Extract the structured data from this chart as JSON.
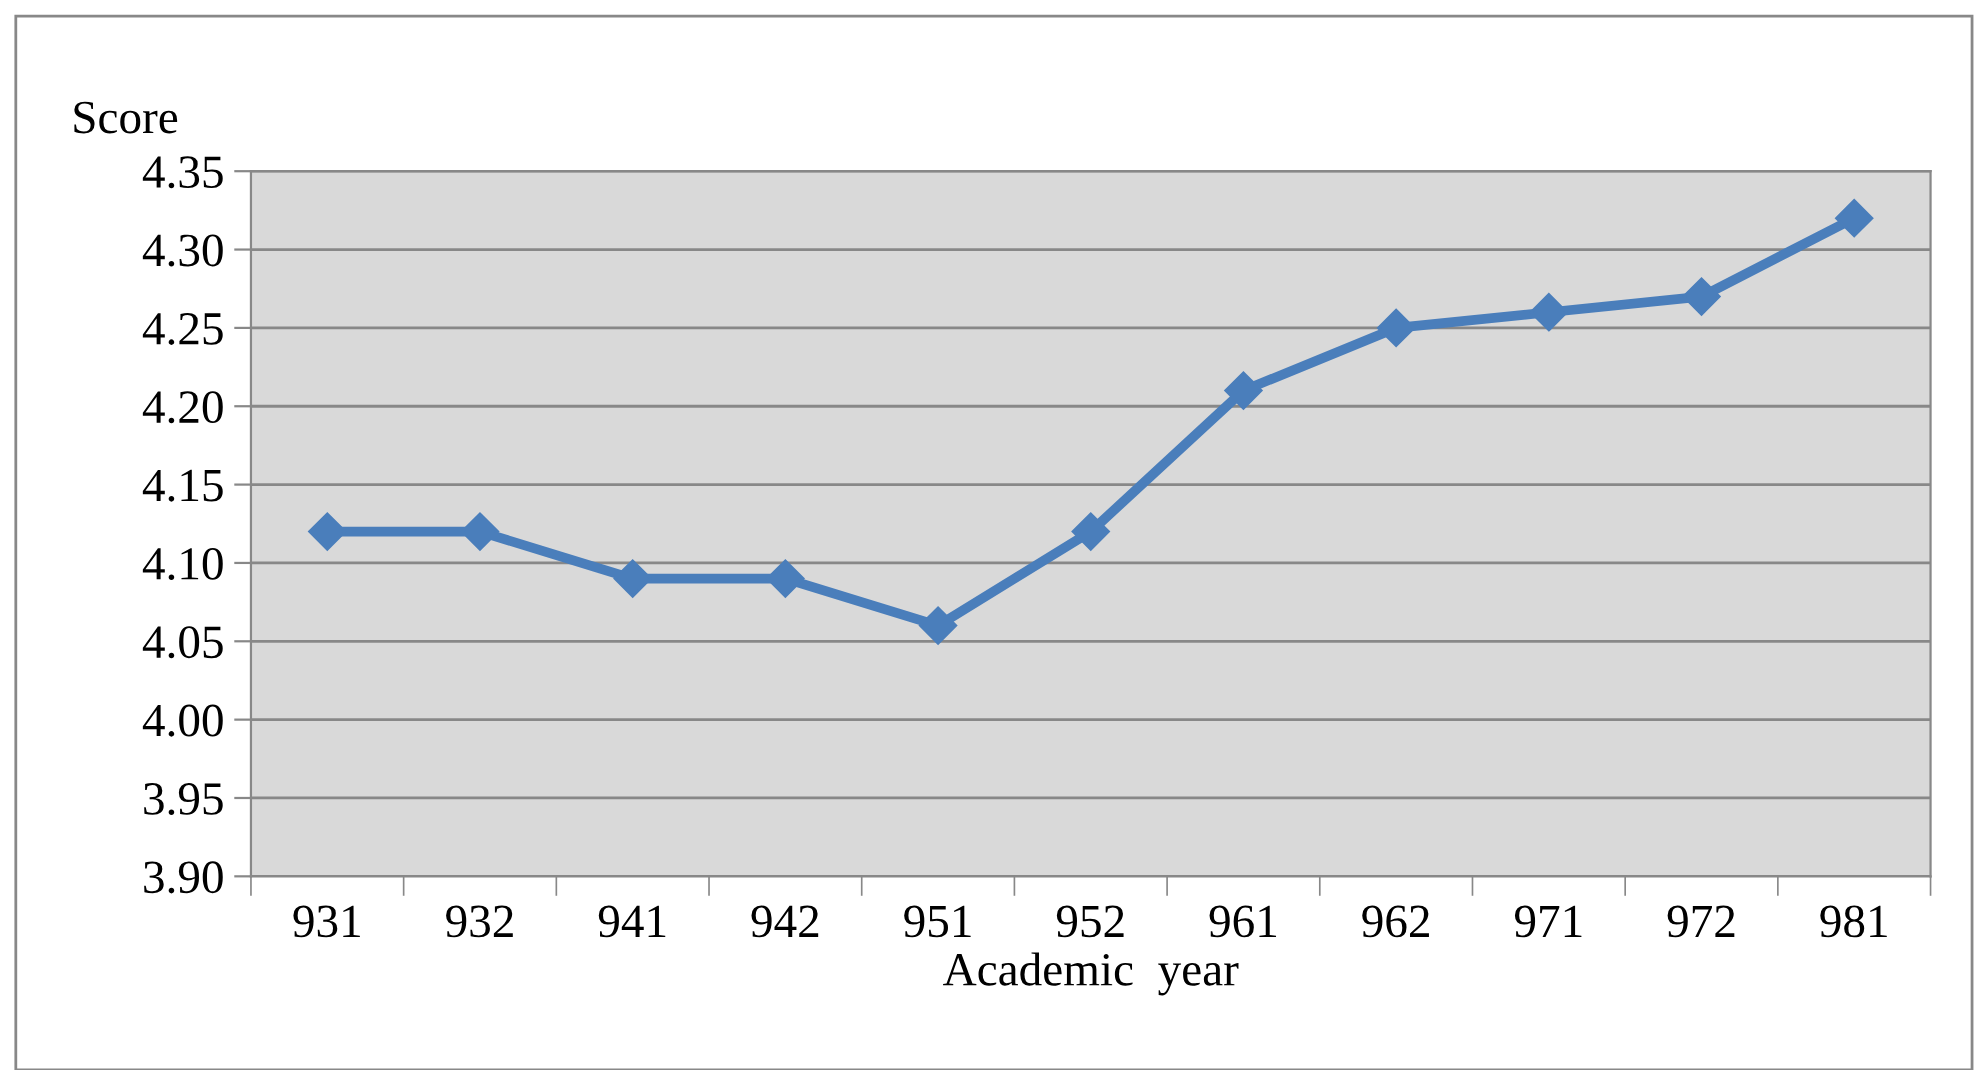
{
  "chart_data": {
    "type": "line",
    "xlabel": "Academic  year",
    "ylabel": "Score",
    "categories": [
      "931",
      "932",
      "941",
      "942",
      "951",
      "952",
      "961",
      "962",
      "971",
      "972",
      "981"
    ],
    "series": [
      {
        "color": "#4a7ebb",
        "values": [
          4.12,
          4.12,
          4.09,
          4.09,
          4.06,
          4.12,
          4.21,
          4.25,
          4.26,
          4.27,
          4.32
        ]
      }
    ],
    "ylim": [
      3.9,
      4.35
    ],
    "yticks": [
      {
        "value": 3.9,
        "label": "3.90"
      },
      {
        "value": 3.95,
        "label": "3.95"
      },
      {
        "value": 4.0,
        "label": "4.00"
      },
      {
        "value": 4.05,
        "label": "4.05"
      },
      {
        "value": 4.1,
        "label": "4.10"
      },
      {
        "value": 4.15,
        "label": "4.15"
      },
      {
        "value": 4.2,
        "label": "4.20"
      },
      {
        "value": 4.25,
        "label": "4.25"
      },
      {
        "value": 4.3,
        "label": "4.30"
      },
      {
        "value": 4.35,
        "label": "4.35"
      }
    ],
    "grid": "y",
    "marker": "diamond",
    "line_style": "solid"
  }
}
